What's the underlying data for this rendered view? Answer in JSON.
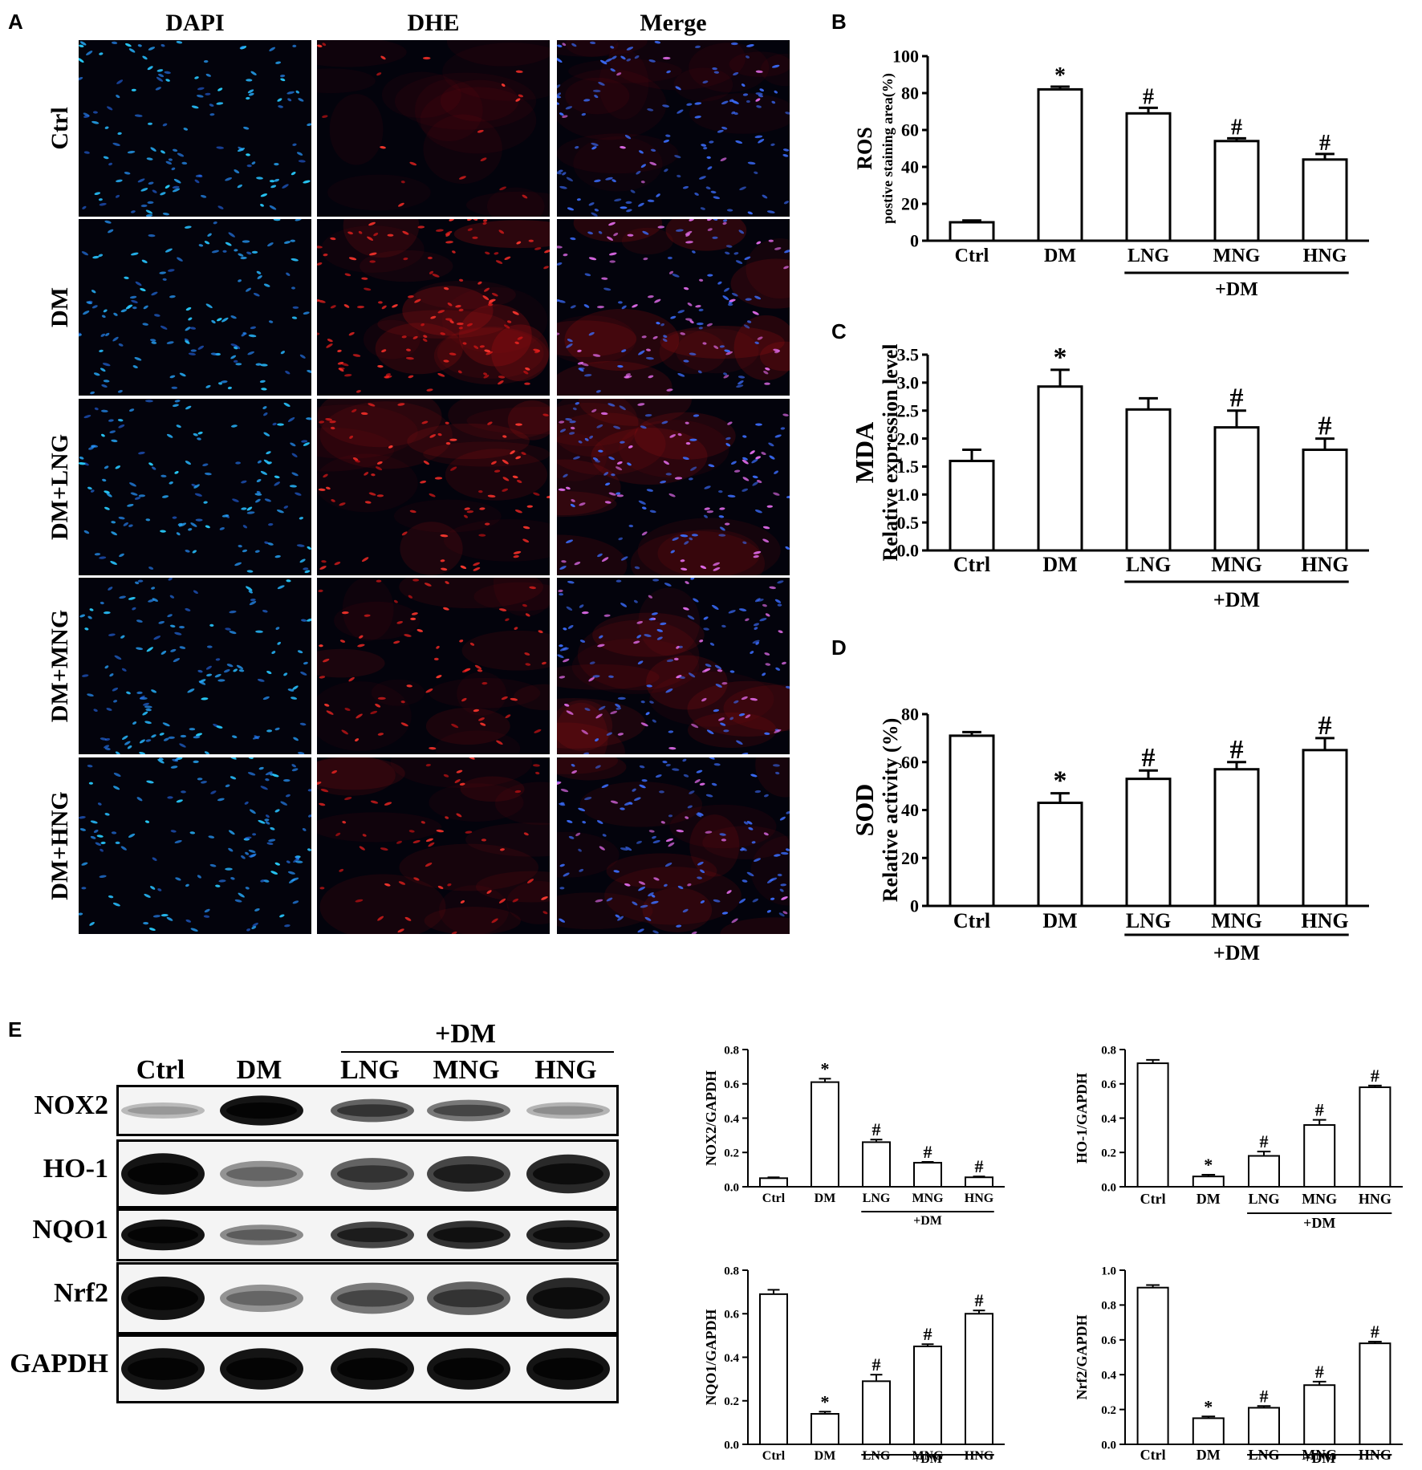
{
  "panel_labels": {
    "A": "A",
    "B": "B",
    "C": "C",
    "D": "D",
    "E": "E"
  },
  "panel_a": {
    "columns": [
      "DAPI",
      "DHE",
      "Merge"
    ],
    "rows": [
      "Ctrl",
      "DM",
      "DM+LNG",
      "DM+MNG",
      "DM+HNG"
    ],
    "dhe_intensity": [
      0.12,
      1.0,
      0.6,
      0.55,
      0.45
    ]
  },
  "panel_e_blot": {
    "group_header": "+DM",
    "lanes": [
      "Ctrl",
      "DM",
      "LNG",
      "MNG",
      "HNG"
    ],
    "bands": [
      {
        "name": "NOX2",
        "intensity": [
          0.12,
          0.95,
          0.55,
          0.45,
          0.15
        ]
      },
      {
        "name": "HO-1",
        "intensity": [
          0.95,
          0.3,
          0.55,
          0.7,
          0.85
        ]
      },
      {
        "name": "NQO1",
        "intensity": [
          0.95,
          0.35,
          0.7,
          0.8,
          0.85
        ]
      },
      {
        "name": "Nrf2",
        "intensity": [
          0.95,
          0.3,
          0.45,
          0.55,
          0.85
        ]
      },
      {
        "name": "GAPDH",
        "intensity": [
          0.95,
          0.95,
          0.95,
          0.95,
          0.95
        ]
      }
    ]
  },
  "chart_data": [
    {
      "id": "B",
      "type": "bar",
      "ylabel": "ROS",
      "ylabel2": "postive staining area(%)",
      "categories": [
        "Ctrl",
        "DM",
        "LNG",
        "MNG",
        "HNG"
      ],
      "values": [
        10,
        82,
        69,
        54,
        44
      ],
      "errors": [
        1,
        1.5,
        3,
        1.5,
        3
      ],
      "marks": [
        "",
        "*",
        "#",
        "#",
        "#"
      ],
      "yticks": [
        "0",
        "20",
        "40",
        "60",
        "80",
        "100"
      ],
      "ylim": [
        0,
        100
      ],
      "group_label": "+DM"
    },
    {
      "id": "C",
      "type": "bar",
      "ylabel": "MDA",
      "ylabel2": "Relative expression level",
      "categories": [
        "Ctrl",
        "DM",
        "LNG",
        "MNG",
        "HNG"
      ],
      "values": [
        1.6,
        2.93,
        2.52,
        2.2,
        1.8
      ],
      "errors": [
        0.2,
        0.3,
        0.2,
        0.3,
        0.2
      ],
      "marks": [
        "",
        "*",
        "",
        "#",
        "#"
      ],
      "yticks": [
        "0.0",
        "0.5",
        "1.0",
        "1.5",
        "2.0",
        "2.5",
        "3.0",
        "3.5"
      ],
      "ylim": [
        0,
        3.5
      ],
      "group_label": "+DM"
    },
    {
      "id": "D",
      "type": "bar",
      "ylabel": "SOD",
      "ylabel2": "Relative activity (%)",
      "categories": [
        "Ctrl",
        "DM",
        "LNG",
        "MNG",
        "HNG"
      ],
      "values": [
        71,
        43,
        53,
        57,
        65
      ],
      "errors": [
        1.5,
        4,
        3.5,
        3,
        5
      ],
      "marks": [
        "",
        "*",
        "#",
        "#",
        "#"
      ],
      "yticks": [
        "0",
        "20",
        "40",
        "60",
        "80"
      ],
      "ylim": [
        0,
        80
      ],
      "group_label": "+DM"
    },
    {
      "id": "E1",
      "type": "bar",
      "ylabel": "NOX2/GAPDH",
      "categories": [
        "Ctrl",
        "DM",
        "LNG",
        "MNG",
        "HNG"
      ],
      "values": [
        0.05,
        0.61,
        0.26,
        0.14,
        0.055
      ],
      "errors": [
        0.005,
        0.02,
        0.015,
        0.005,
        0.005
      ],
      "marks": [
        "",
        "*",
        "#",
        "#",
        "#"
      ],
      "yticks": [
        "0.0",
        "0.2",
        "0.4",
        "0.6",
        "0.8"
      ],
      "ylim": [
        0,
        0.8
      ],
      "group_label": "+DM"
    },
    {
      "id": "E2",
      "type": "bar",
      "ylabel": "HO-1/GAPDH",
      "categories": [
        "Ctrl",
        "DM",
        "LNG",
        "MNG",
        "HNG"
      ],
      "values": [
        0.72,
        0.06,
        0.18,
        0.36,
        0.58
      ],
      "errors": [
        0.02,
        0.01,
        0.025,
        0.03,
        0.01
      ],
      "marks": [
        "",
        "*",
        "#",
        "#",
        "#"
      ],
      "yticks": [
        "0.0",
        "0.2",
        "0.4",
        "0.6",
        "0.8"
      ],
      "ylim": [
        0,
        0.8
      ],
      "group_label": "+DM"
    },
    {
      "id": "E3",
      "type": "bar",
      "ylabel": "NQO1/GAPDH",
      "categories": [
        "Ctrl",
        "DM",
        "LNG",
        "MNG",
        "HNG"
      ],
      "values": [
        0.69,
        0.14,
        0.29,
        0.45,
        0.6
      ],
      "errors": [
        0.02,
        0.01,
        0.03,
        0.01,
        0.015
      ],
      "marks": [
        "",
        "*",
        "#",
        "#",
        "#"
      ],
      "yticks": [
        "0.0",
        "0.2",
        "0.4",
        "0.6",
        "0.8"
      ],
      "ylim": [
        0,
        0.8
      ],
      "group_label": "+DM"
    },
    {
      "id": "E4",
      "type": "bar",
      "ylabel": "Nrf2/GAPDH",
      "categories": [
        "Ctrl",
        "DM",
        "LNG",
        "MNG",
        "HNG"
      ],
      "values": [
        0.9,
        0.15,
        0.21,
        0.34,
        0.58
      ],
      "errors": [
        0.015,
        0.01,
        0.01,
        0.02,
        0.01
      ],
      "marks": [
        "",
        "*",
        "#",
        "#",
        "#"
      ],
      "yticks": [
        "0.0",
        "0.2",
        "0.4",
        "0.6",
        "0.8",
        "1.0"
      ],
      "ylim": [
        0,
        1.0
      ],
      "group_label": "+DM"
    }
  ]
}
